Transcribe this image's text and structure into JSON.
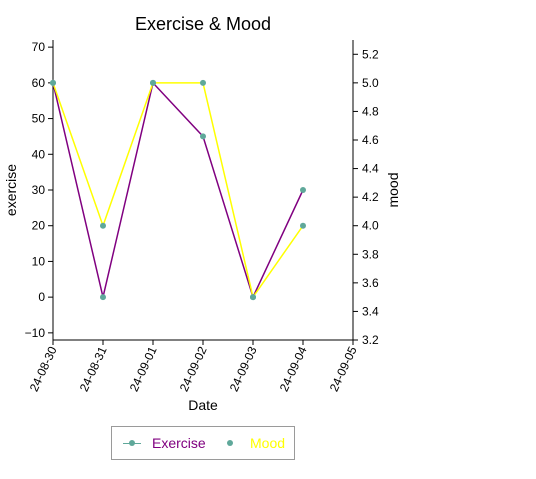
{
  "chart_data": {
    "type": "line",
    "title": "Exercise & Mood",
    "xlabel": "Date",
    "ylabel_left": "exercise",
    "ylabel_right": "mood",
    "x": [
      "24-08-30",
      "24-08-31",
      "24-09-01",
      "24-09-02",
      "24-09-03",
      "24-09-04"
    ],
    "x_ticks": [
      "24-08-30",
      "24-08-31",
      "24-09-01",
      "24-09-02",
      "24-09-03",
      "24-09-04",
      "24-09-05"
    ],
    "ylim_left": [
      -12,
      72
    ],
    "yticks_left": [
      -10,
      0,
      10,
      20,
      30,
      40,
      50,
      60,
      70
    ],
    "ylim_right": [
      3.2,
      5.3
    ],
    "yticks_right": [
      3.2,
      3.4,
      3.6,
      3.8,
      4.0,
      4.2,
      4.4,
      4.6,
      4.8,
      5.0,
      5.2
    ],
    "grid": false,
    "legend_position": "bottom-center",
    "series": [
      {
        "name": "Exercise",
        "axis": "left",
        "values": [
          60,
          0,
          60,
          45,
          0,
          30
        ],
        "line_color": "#800080",
        "marker_color": "#5fa89a"
      },
      {
        "name": "Mood",
        "axis": "right",
        "values": [
          5.0,
          4.0,
          5.0,
          5.0,
          3.5,
          4.0
        ],
        "line_color": "#ffff00",
        "marker_color": "#5fa89a"
      }
    ]
  }
}
